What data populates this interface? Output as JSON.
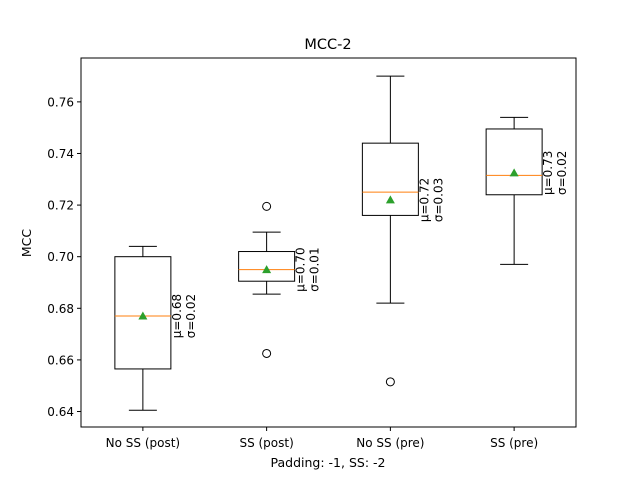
{
  "chart_data": {
    "type": "box",
    "title": "MCC-2",
    "xlabel": "Padding: -1, SS: -2",
    "ylabel": "MCC",
    "categories": [
      "No SS (post)",
      "SS (post)",
      "No SS (pre)",
      "SS (pre)"
    ],
    "ylim": [
      0.634,
      0.777
    ],
    "yticks": [
      0.64,
      0.66,
      0.68,
      0.7,
      0.72,
      0.74,
      0.76
    ],
    "ytick_labels": [
      "0.64",
      "0.66",
      "0.68",
      "0.70",
      "0.72",
      "0.74",
      "0.76"
    ],
    "grid": false,
    "boxes": [
      {
        "category": "No SS (post)",
        "whisker_low": 0.6405,
        "q1": 0.6565,
        "median": 0.677,
        "q3": 0.7,
        "whisker_high": 0.704,
        "mean": 0.677,
        "outliers": [],
        "label_mu": "μ=0.68",
        "label_sigma": "σ=0.02"
      },
      {
        "category": "SS (post)",
        "whisker_low": 0.6855,
        "q1": 0.6905,
        "median": 0.695,
        "q3": 0.702,
        "whisker_high": 0.7095,
        "mean": 0.695,
        "outliers": [
          0.7195,
          0.6625
        ],
        "label_mu": "μ=0.70",
        "label_sigma": "σ=0.01"
      },
      {
        "category": "No SS (pre)",
        "whisker_low": 0.682,
        "q1": 0.716,
        "median": 0.725,
        "q3": 0.744,
        "whisker_high": 0.77,
        "mean": 0.722,
        "outliers": [
          0.6515
        ],
        "label_mu": "μ=0.72",
        "label_sigma": "σ=0.03"
      },
      {
        "category": "SS (pre)",
        "whisker_low": 0.697,
        "q1": 0.724,
        "median": 0.7315,
        "q3": 0.7495,
        "whisker_high": 0.754,
        "mean": 0.7325,
        "outliers": [],
        "label_mu": "μ=0.73",
        "label_sigma": "σ=0.02"
      }
    ],
    "colors": {
      "box": "#000000",
      "median": "#ff7f0e",
      "mean": "#2ca02c",
      "outlier": "#000000"
    }
  }
}
